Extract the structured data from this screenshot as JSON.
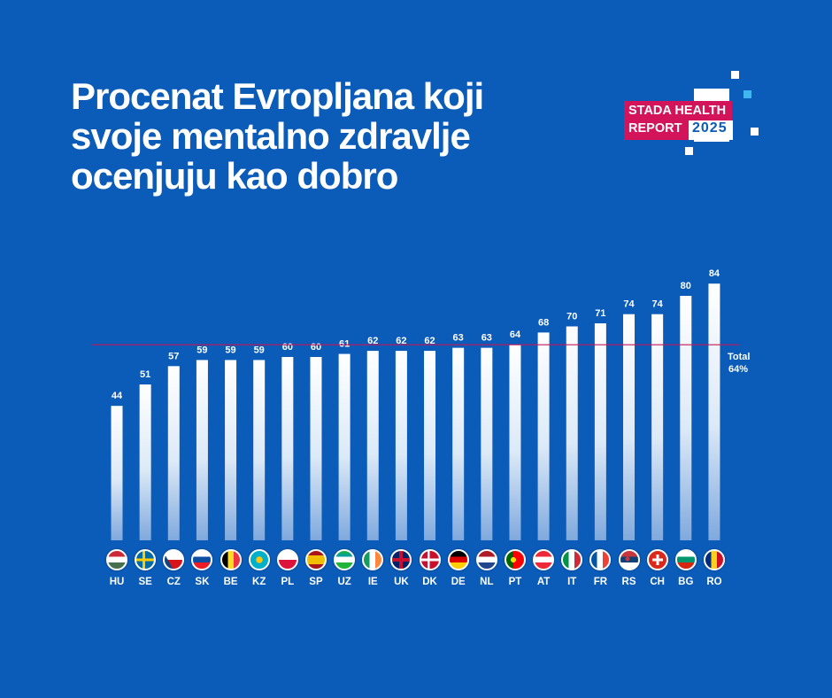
{
  "title_lines": [
    "Procenat Evropljana koji",
    "svoje mentalno zdravlje",
    "ocenjuju kao dobro"
  ],
  "logo": {
    "line1": "STADA HEALTH",
    "line2": "REPORT",
    "year": "2025",
    "colors": {
      "pink": "#d4145a",
      "background": "#0b5bb8"
    }
  },
  "chart_data": {
    "type": "bar",
    "categories": [
      "HU",
      "SE",
      "CZ",
      "SK",
      "BE",
      "KZ",
      "PL",
      "SP",
      "UZ",
      "IE",
      "UK",
      "DK",
      "DE",
      "NL",
      "PT",
      "AT",
      "IT",
      "FR",
      "RS",
      "CH",
      "BG",
      "RO"
    ],
    "values": [
      44,
      51,
      57,
      59,
      59,
      59,
      60,
      60,
      61,
      62,
      62,
      62,
      63,
      63,
      64,
      68,
      70,
      71,
      74,
      74,
      80,
      84
    ],
    "reference_line": {
      "value": 64,
      "label": "Total",
      "value_label": "64%",
      "color": "#c2185b"
    },
    "ylim": [
      0,
      84
    ],
    "grid": false,
    "bar_color": "white fading to light blue"
  }
}
